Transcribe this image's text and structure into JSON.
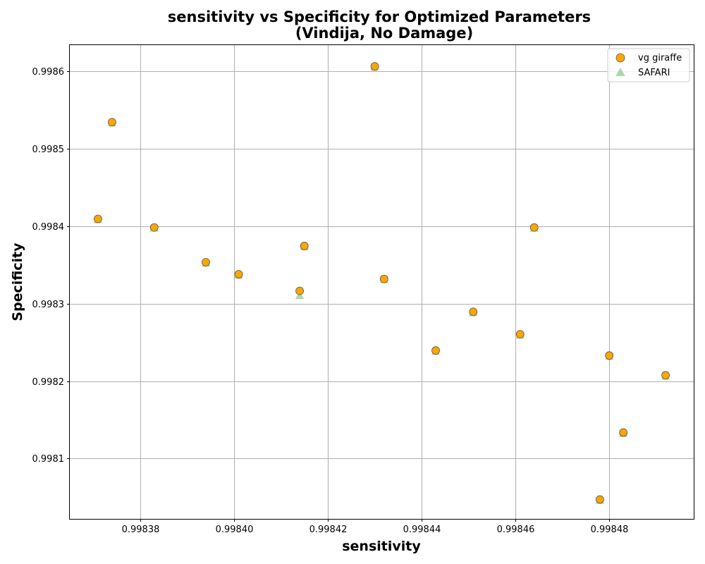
{
  "chart_data": {
    "type": "scatter",
    "title": "sensitivity vs Specificity for Optimized Parameters",
    "subtitle": "(Vindija, No Damage)",
    "xlabel": "sensitivity",
    "ylabel": "Specificity",
    "xlim": [
      0.998365,
      0.998498
    ],
    "ylim": [
      0.998022,
      0.998634
    ],
    "xticks": [
      0.99838,
      0.9984,
      0.99842,
      0.99844,
      0.99846,
      0.99848
    ],
    "xtick_labels": [
      "0.99838",
      "0.99840",
      "0.99842",
      "0.99844",
      "0.99846",
      "0.99848"
    ],
    "yticks": [
      0.9981,
      0.9982,
      0.9983,
      0.9984,
      0.9985,
      0.9986
    ],
    "ytick_labels": [
      "0.9981",
      "0.9982",
      "0.9983",
      "0.9984",
      "0.9985",
      "0.9986"
    ],
    "grid": true,
    "legend_position": "top-right",
    "series": [
      {
        "name": "vg giraffe",
        "marker": "circle",
        "color": "#ffa500",
        "edge_color": "#555555",
        "points": [
          {
            "x": 0.99843,
            "y": 0.9986065
          },
          {
            "x": 0.998374,
            "y": 0.9985345
          },
          {
            "x": 0.998371,
            "y": 0.9984095
          },
          {
            "x": 0.998383,
            "y": 0.9983985
          },
          {
            "x": 0.998394,
            "y": 0.9983535
          },
          {
            "x": 0.998401,
            "y": 0.998338
          },
          {
            "x": 0.998415,
            "y": 0.9983745
          },
          {
            "x": 0.998414,
            "y": 0.9983165
          },
          {
            "x": 0.998432,
            "y": 0.998332
          },
          {
            "x": 0.998443,
            "y": 0.9982395
          },
          {
            "x": 0.998451,
            "y": 0.9982895
          },
          {
            "x": 0.998461,
            "y": 0.9982605
          },
          {
            "x": 0.998464,
            "y": 0.9983985
          },
          {
            "x": 0.99848,
            "y": 0.998233
          },
          {
            "x": 0.998492,
            "y": 0.9982075
          },
          {
            "x": 0.998483,
            "y": 0.9981335
          },
          {
            "x": 0.998478,
            "y": 0.998047
          }
        ]
      },
      {
        "name": "SAFARI",
        "marker": "triangle",
        "color": "#2ca02c",
        "alpha": 0.4,
        "points": [
          {
            "x": 0.99843,
            "y": 0.998606
          },
          {
            "x": 0.998374,
            "y": 0.998534
          },
          {
            "x": 0.998371,
            "y": 0.998409
          },
          {
            "x": 0.998383,
            "y": 0.998398
          },
          {
            "x": 0.998394,
            "y": 0.998353
          },
          {
            "x": 0.998401,
            "y": 0.9983375
          },
          {
            "x": 0.998415,
            "y": 0.998374
          },
          {
            "x": 0.998414,
            "y": 0.998311
          },
          {
            "x": 0.998432,
            "y": 0.9983315
          },
          {
            "x": 0.998443,
            "y": 0.998239
          },
          {
            "x": 0.998451,
            "y": 0.998289
          },
          {
            "x": 0.998461,
            "y": 0.99826
          },
          {
            "x": 0.998464,
            "y": 0.998398
          },
          {
            "x": 0.99848,
            "y": 0.9982325
          },
          {
            "x": 0.998492,
            "y": 0.998207
          },
          {
            "x": 0.998483,
            "y": 0.998133
          },
          {
            "x": 0.998478,
            "y": 0.9980465
          }
        ]
      }
    ]
  }
}
